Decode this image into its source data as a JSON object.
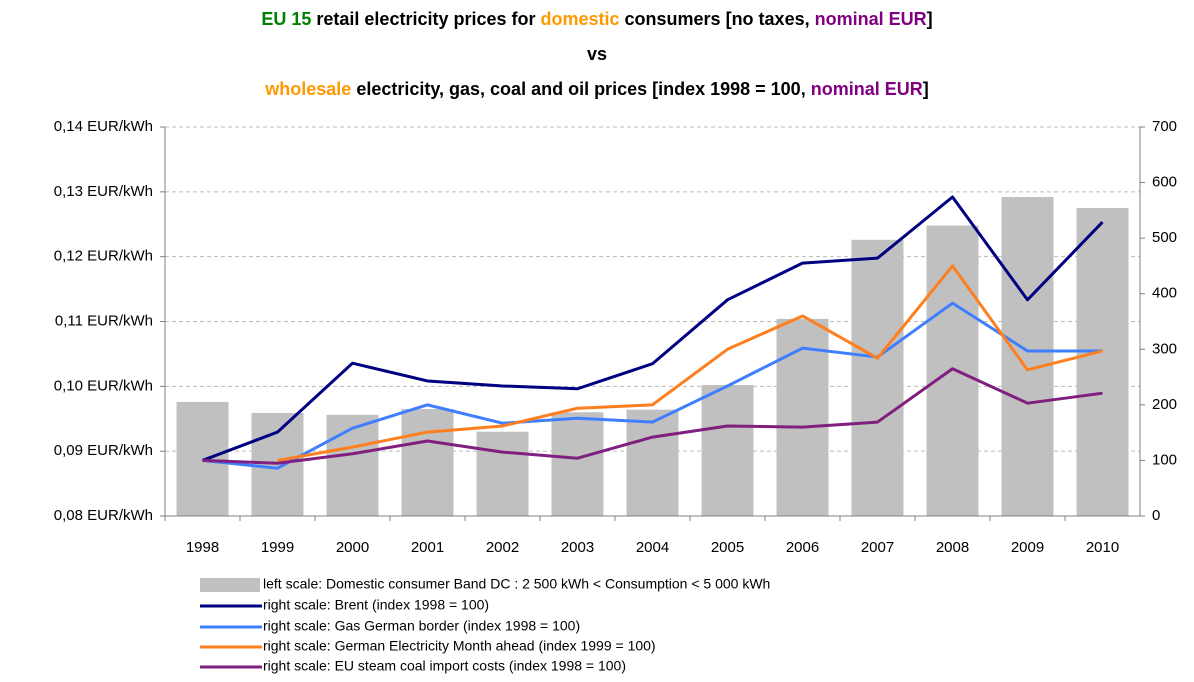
{
  "chart_data": {
    "type": "bar-line",
    "title_lines": [
      [
        {
          "text": "EU 15",
          "color": "#008000"
        },
        {
          "text": " retail electricity prices for ",
          "color": "#000000"
        },
        {
          "text": "domestic",
          "color": "#ff9900"
        },
        {
          "text": " consumers  [no taxes, ",
          "color": "#000000"
        },
        {
          "text": "nominal EUR",
          "color": "#800080"
        },
        {
          "text": "]",
          "color": "#000000"
        }
      ],
      [
        {
          "text": "vs",
          "color": "#000000"
        }
      ],
      [
        {
          "text": "wholesale",
          "color": "#ff9900"
        },
        {
          "text": " electricity, gas, coal and oil prices [index 1998 = 100, ",
          "color": "#000000"
        },
        {
          "text": "nominal EUR",
          "color": "#800080"
        },
        {
          "text": "]",
          "color": "#000000"
        }
      ]
    ],
    "categories": [
      "1998",
      "1999",
      "2000",
      "2001",
      "2002",
      "2003",
      "2004",
      "2005",
      "2006",
      "2007",
      "2008",
      "2009",
      "2010"
    ],
    "ylim": [
      0.08,
      0.14
    ],
    "yticks": [
      {
        "value": 0.08,
        "label": "0,08 EUR/kWh"
      },
      {
        "value": 0.09,
        "label": "0,09 EUR/kWh"
      },
      {
        "value": 0.1,
        "label": "0,10 EUR/kWh"
      },
      {
        "value": 0.11,
        "label": "0,11 EUR/kWh"
      },
      {
        "value": 0.12,
        "label": "0,12 EUR/kWh"
      },
      {
        "value": 0.13,
        "label": "0,13 EUR/kWh"
      },
      {
        "value": 0.14,
        "label": "0,14 EUR/kWh"
      }
    ],
    "y2lim": [
      0,
      700
    ],
    "y2ticks": [
      0,
      100,
      200,
      300,
      400,
      500,
      600,
      700
    ],
    "grid": true,
    "series": [
      {
        "name": "left scale: Domestic consumer Band DC : 2 500 kWh < Consumption < 5 000 kWh",
        "type": "bar",
        "color": "#c0c0c0",
        "values": [
          0.0976,
          0.0959,
          0.0956,
          0.0965,
          0.093,
          0.096,
          0.0964,
          0.1002,
          0.1104,
          0.1226,
          0.1248,
          0.1292,
          0.1275
        ]
      },
      {
        "name": "right scale: Brent (index 1998 = 100)",
        "type": "line",
        "axis": "y2",
        "color": "#000080",
        "values": [
          100,
          151,
          275,
          243,
          234,
          229,
          274,
          389,
          455,
          464,
          574,
          389,
          529
        ]
      },
      {
        "name": "right scale: Gas German border (index 1998 = 100)",
        "type": "line",
        "axis": "y2",
        "color": "#3f7fff",
        "values": [
          100,
          86,
          158,
          200,
          167,
          176,
          169,
          234,
          302,
          286,
          383,
          297,
          297
        ]
      },
      {
        "name": "right scale: German Electricity Month ahead (index 1999 = 100)",
        "type": "line",
        "axis": "y2",
        "color": "#ff7f1f",
        "values": [
          null,
          100,
          124,
          151,
          162,
          194,
          200,
          300,
          360,
          284,
          450,
          263,
          297
        ]
      },
      {
        "name": "right scale: EU steam coal import costs (index 1998 = 100)",
        "type": "line",
        "axis": "y2",
        "color": "#7f1f7f",
        "values": [
          100,
          95,
          112,
          135,
          115,
          104,
          142,
          162,
          160,
          169,
          265,
          203,
          221
        ]
      }
    ]
  }
}
